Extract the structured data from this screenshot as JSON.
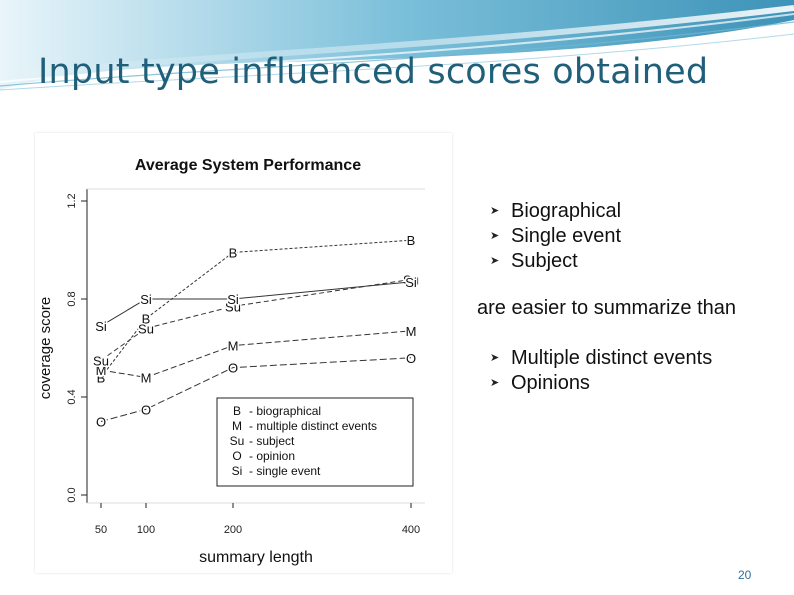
{
  "slide": {
    "title": "Input type influenced scores obtained",
    "bullets_easier": [
      "Biographical",
      "Single event",
      "Subject"
    ],
    "middle_text": "are easier to summarize than",
    "bullets_harder": [
      "Multiple distinct events",
      "Opinions"
    ],
    "page_number": "20",
    "bullet_icon": "arrow-bullet-icon",
    "colors": {
      "title": "#1f5f7a",
      "page_number": "#2f6ea0",
      "banner": "#5aa9c8"
    }
  },
  "chart_data": {
    "type": "line",
    "title": "Average System Performance",
    "xlabel": "summary length",
    "ylabel": "coverage score",
    "x": [
      50,
      100,
      200,
      400
    ],
    "x_tick_labels": [
      "50",
      "100",
      "200",
      "400"
    ],
    "y_tick_labels": [
      "0.0",
      "0.4",
      "0.8",
      "1.2"
    ],
    "y_ticks": [
      0.0,
      0.4,
      0.8,
      1.2
    ],
    "ylim": [
      0.0,
      1.2
    ],
    "grid": false,
    "series": [
      {
        "name": "B",
        "marker": "B",
        "values": [
          0.48,
          0.72,
          0.99,
          1.04
        ]
      },
      {
        "name": "M",
        "marker": "M",
        "values": [
          0.51,
          0.48,
          0.61,
          0.67
        ]
      },
      {
        "name": "Su",
        "marker": "Su",
        "values": [
          0.55,
          0.68,
          0.77,
          0.88
        ]
      },
      {
        "name": "O",
        "marker": "O",
        "values": [
          0.3,
          0.35,
          0.52,
          0.56
        ]
      },
      {
        "name": "Si",
        "marker": "Si",
        "values": [
          0.69,
          0.8,
          0.8,
          0.87
        ]
      }
    ],
    "legend": {
      "position": "bottom-right",
      "entries": [
        {
          "code": "B",
          "label": "- biographical"
        },
        {
          "code": "M",
          "label": "- multiple distinct events"
        },
        {
          "code": "Su",
          "label": "- subject"
        },
        {
          "code": "O",
          "label": "- opinion"
        },
        {
          "code": "Si",
          "label": "- single event"
        }
      ]
    }
  }
}
